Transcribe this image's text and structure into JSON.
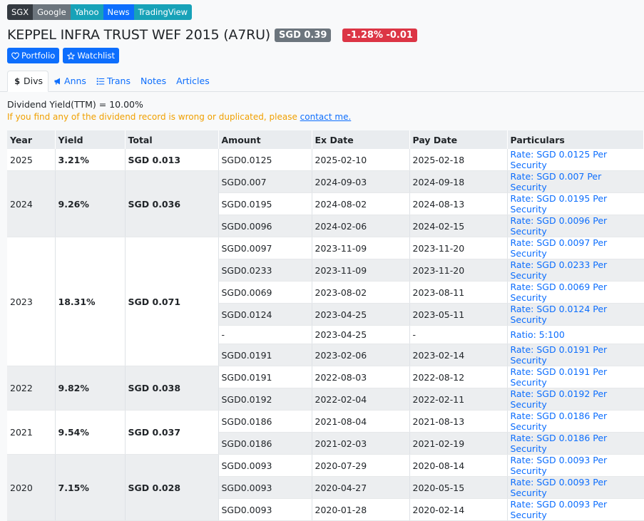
{
  "ext_links": [
    {
      "label": "SGX",
      "color": "#343a40"
    },
    {
      "label": "Google",
      "color": "#6c757d"
    },
    {
      "label": "Yahoo",
      "color": "#17a2b8"
    },
    {
      "label": "News",
      "color": "#0d6efd"
    },
    {
      "label": "TradingView",
      "color": "#17a2b8"
    }
  ],
  "header": {
    "title": "KEPPEL INFRA TRUST WEF 2015 (A7RU)",
    "price": "SGD 0.39",
    "change": "-1.28% -0.01"
  },
  "buttons": {
    "portfolio": "Portfolio",
    "watchlist": "Watchlist"
  },
  "tabs": [
    {
      "label": "Divs",
      "icon": "dollar-icon"
    },
    {
      "label": "Anns",
      "icon": "megaphone-icon"
    },
    {
      "label": "Trans",
      "icon": "list-icon"
    },
    {
      "label": "Notes",
      "icon": ""
    },
    {
      "label": "Articles",
      "icon": ""
    }
  ],
  "info": {
    "yield": "Dividend Yield(TTM) = 10.00%",
    "warning": "If you find any of the dividend record is wrong or duplicated, please ",
    "contact": "contact me."
  },
  "table": {
    "headers": [
      "Year",
      "Yield",
      "Total",
      "Amount",
      "Ex Date",
      "Pay Date",
      "Particulars"
    ],
    "groups": [
      {
        "year": "2025",
        "yield": "3.21%",
        "total": "SGD 0.013",
        "rows": [
          [
            "SGD0.0125",
            "2025-02-10",
            "2025-02-18",
            "Rate: SGD 0.0125 Per Security"
          ]
        ]
      },
      {
        "year": "2024",
        "yield": "9.26%",
        "total": "SGD 0.036",
        "rows": [
          [
            "SGD0.007",
            "2024-09-03",
            "2024-09-18",
            "Rate: SGD 0.007 Per Security"
          ],
          [
            "SGD0.0195",
            "2024-08-02",
            "2024-08-13",
            "Rate: SGD 0.0195 Per Security"
          ],
          [
            "SGD0.0096",
            "2024-02-06",
            "2024-02-15",
            "Rate: SGD 0.0096 Per Security"
          ]
        ]
      },
      {
        "year": "2023",
        "yield": "18.31%",
        "total": "SGD 0.071",
        "rows": [
          [
            "SGD0.0097",
            "2023-11-09",
            "2023-11-20",
            "Rate: SGD 0.0097 Per Security"
          ],
          [
            "SGD0.0233",
            "2023-11-09",
            "2023-11-20",
            "Rate: SGD 0.0233 Per Security"
          ],
          [
            "SGD0.0069",
            "2023-08-02",
            "2023-08-11",
            "Rate: SGD 0.0069 Per Security"
          ],
          [
            "SGD0.0124",
            "2023-04-25",
            "2023-05-11",
            "Rate: SGD 0.0124 Per Security"
          ],
          [
            "-",
            "2023-04-25",
            "-",
            "Ratio: 5:100"
          ],
          [
            "SGD0.0191",
            "2023-02-06",
            "2023-02-14",
            "Rate: SGD 0.0191 Per Security"
          ]
        ]
      },
      {
        "year": "2022",
        "yield": "9.82%",
        "total": "SGD 0.038",
        "rows": [
          [
            "SGD0.0191",
            "2022-08-03",
            "2022-08-12",
            "Rate: SGD 0.0191 Per Security"
          ],
          [
            "SGD0.0192",
            "2022-02-04",
            "2022-02-11",
            "Rate: SGD 0.0192 Per Security"
          ]
        ]
      },
      {
        "year": "2021",
        "yield": "9.54%",
        "total": "SGD 0.037",
        "rows": [
          [
            "SGD0.0186",
            "2021-08-04",
            "2021-08-13",
            "Rate: SGD 0.0186 Per Security"
          ],
          [
            "SGD0.0186",
            "2021-02-03",
            "2021-02-19",
            "Rate: SGD 0.0186 Per Security"
          ]
        ]
      },
      {
        "year": "2020",
        "yield": "7.15%",
        "total": "SGD 0.028",
        "rows": [
          [
            "SGD0.0093",
            "2020-07-29",
            "2020-08-14",
            "Rate: SGD 0.0093 Per Security"
          ],
          [
            "SGD0.0093",
            "2020-04-27",
            "2020-05-15",
            "Rate: SGD 0.0093 Per Security"
          ],
          [
            "SGD0.0093",
            "2020-01-28",
            "2020-02-14",
            "Rate: SGD 0.0093 Per Security"
          ]
        ]
      }
    ]
  }
}
